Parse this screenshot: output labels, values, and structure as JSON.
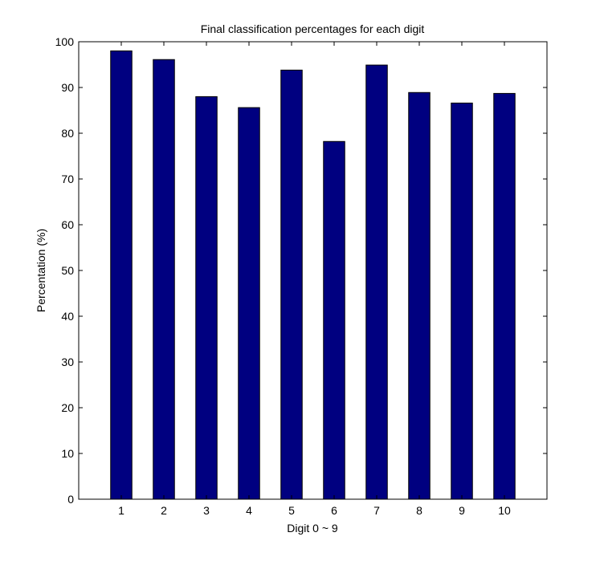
{
  "chart_data": {
    "type": "bar",
    "title": "Final classification percentages for each digit",
    "xlabel": "Digit 0 ~ 9",
    "ylabel": "Percentation (%)",
    "categories": [
      "1",
      "2",
      "3",
      "4",
      "5",
      "6",
      "7",
      "8",
      "9",
      "10"
    ],
    "values": [
      98.0,
      96.1,
      88.0,
      85.6,
      93.8,
      78.2,
      94.9,
      88.9,
      86.6,
      88.7
    ],
    "ylim": [
      0,
      100
    ],
    "xlim": [
      0,
      11
    ],
    "yticks": [
      0,
      10,
      20,
      30,
      40,
      50,
      60,
      70,
      80,
      90,
      100
    ],
    "bar_color": "#000080",
    "grid": false,
    "legend": "none"
  }
}
